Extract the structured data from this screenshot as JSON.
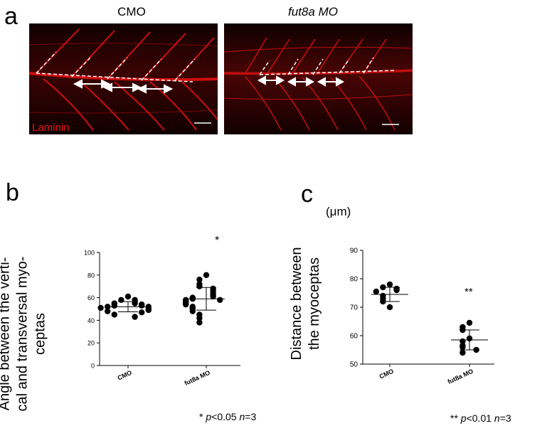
{
  "panel_a": {
    "letter": "a",
    "titles": [
      "CMO",
      "fut8a MO"
    ],
    "stain_label": "Laminin"
  },
  "panel_b": {
    "letter": "b",
    "ylabel_lines": [
      "Angle between the verti-",
      "cal and transversal myo-",
      "ceptas"
    ],
    "significance": "*",
    "footnote": {
      "prefix": "* ",
      "p": "p",
      "p_val": "<0.05 ",
      "n": "n",
      "n_val": "=3"
    }
  },
  "panel_c": {
    "letter": "c",
    "unit": "(μm)",
    "ylabel_lines": [
      "Distance between",
      "the myoceptas"
    ],
    "significance": "**",
    "footnote": {
      "prefix": "** ",
      "p": "p",
      "p_val": "<0.01 ",
      "n": "n",
      "n_val": "=3"
    }
  },
  "chart_data": [
    {
      "type": "scatter",
      "panel": "b",
      "categories": [
        "CMO",
        "fut8a MO"
      ],
      "ylim": [
        0,
        100
      ],
      "yticks": [
        0,
        20,
        40,
        60,
        80,
        100
      ],
      "series": [
        {
          "values": [
            61,
            58,
            58,
            55,
            55,
            54,
            53,
            53,
            52,
            52,
            51,
            50,
            49,
            48,
            47,
            45,
            43
          ]
        },
        {
          "values": [
            80,
            76,
            72,
            70,
            68,
            66,
            64,
            62,
            61,
            60,
            59,
            58,
            58,
            57,
            56,
            55,
            54,
            52,
            51,
            50,
            48,
            45,
            42,
            38
          ]
        }
      ],
      "means": [
        52,
        59
      ],
      "sd": [
        4.5,
        10
      ]
    },
    {
      "type": "scatter",
      "panel": "c",
      "categories": [
        "CMO",
        "fut8a MO"
      ],
      "ylim": [
        50,
        90
      ],
      "yticks": [
        50,
        60,
        70,
        80,
        90
      ],
      "series": [
        {
          "values": [
            78,
            77,
            76.5,
            76,
            75.5,
            74,
            73,
            72,
            70
          ]
        },
        {
          "values": [
            64.5,
            63,
            62,
            59,
            58,
            56.5,
            56,
            55,
            54
          ]
        }
      ],
      "means": [
        74.5,
        58.5
      ],
      "sd": [
        2.5,
        3.5
      ]
    }
  ]
}
